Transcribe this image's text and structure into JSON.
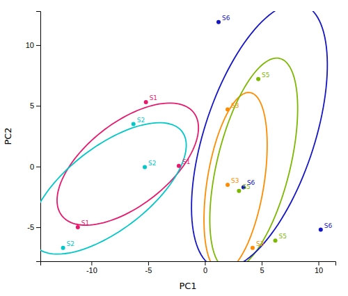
{
  "chart_data": {
    "type": "scatter",
    "xlabel": "PC1",
    "ylabel": "PC2",
    "series": [
      {
        "name": "S1",
        "color": "#E8186D",
        "x": [
          -5.2,
          -2.3,
          -11.2
        ],
        "values": [
          5.3,
          0.05,
          -5.0
        ],
        "ellipse": {
          "cx": -6.8,
          "cy": 0.2,
          "a": 7.2,
          "b": 3.5,
          "angle": 35
        }
      },
      {
        "name": "S2",
        "color": "#00C8C8",
        "x": [
          -6.3,
          -5.3,
          -12.5
        ],
        "values": [
          3.5,
          -0.05,
          -6.7
        ],
        "ellipse": {
          "cx": -8.5,
          "cy": -1.8,
          "a": 8.0,
          "b": 3.5,
          "angle": 35
        }
      },
      {
        "name": "S3",
        "color": "#FF8C00",
        "x": [
          2.0,
          2.0,
          4.2
        ],
        "values": [
          4.7,
          -1.5,
          -6.7
        ],
        "ellipse": {
          "cx": 2.7,
          "cy": -1.3,
          "a": 7.5,
          "b": 2.5,
          "angle": 80
        }
      },
      {
        "name": "S5",
        "color": "#7DB800",
        "x": [
          4.7,
          3.0,
          6.2
        ],
        "values": [
          7.2,
          -2.0,
          -6.1
        ],
        "ellipse": {
          "cx": 4.3,
          "cy": 0.2,
          "a": 9.0,
          "b": 3.2,
          "angle": 75
        }
      },
      {
        "name": "S6",
        "color": "#1515C8",
        "x": [
          1.2,
          3.4,
          10.2
        ],
        "values": [
          11.9,
          -1.7,
          -5.2
        ],
        "ellipse": {
          "cx": 4.8,
          "cy": 2.5,
          "a": 11.5,
          "b": 4.8,
          "angle": 70
        }
      }
    ],
    "xlim": [
      -14.5,
      11.5
    ],
    "ylim": [
      -7.8,
      12.8
    ],
    "xticks": [
      -10,
      -5,
      0,
      5,
      10
    ],
    "yticks": [
      -5,
      0,
      5,
      10
    ],
    "grid": false
  }
}
